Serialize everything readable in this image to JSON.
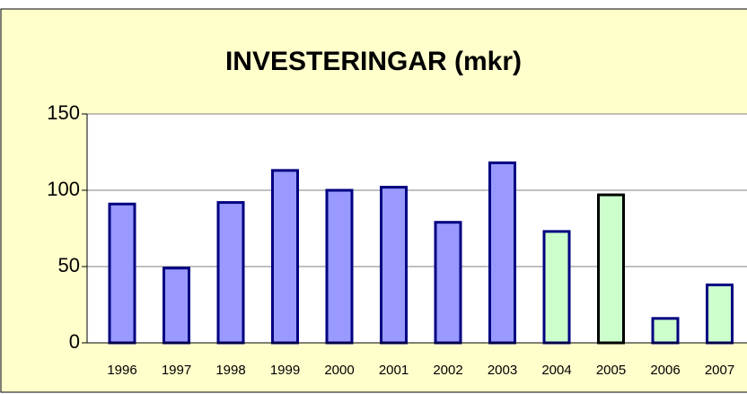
{
  "chart_data": {
    "type": "bar",
    "title": "INVESTERINGAR  (mkr)",
    "categories": [
      "1996",
      "1997",
      "1998",
      "1999",
      "2000",
      "2001",
      "2002",
      "2003",
      "2004",
      "2005",
      "2006",
      "2007"
    ],
    "values": [
      91,
      49,
      92,
      113,
      100,
      102,
      79,
      118,
      73,
      97,
      16,
      38
    ],
    "colors": [
      "#9999ff",
      "#9999ff",
      "#9999ff",
      "#9999ff",
      "#9999ff",
      "#9999ff",
      "#9999ff",
      "#9999ff",
      "#ccffcc",
      "#ccffcc",
      "#ccffcc",
      "#ccffcc"
    ],
    "edge_colors": [
      "#000080",
      "#000080",
      "#000080",
      "#000080",
      "#000080",
      "#000080",
      "#000080",
      "#000080",
      "#000080",
      "#000000",
      "#000080",
      "#000080"
    ],
    "ylim": [
      0,
      150
    ],
    "yticks": [
      0,
      50,
      100,
      150
    ],
    "grid": true
  }
}
